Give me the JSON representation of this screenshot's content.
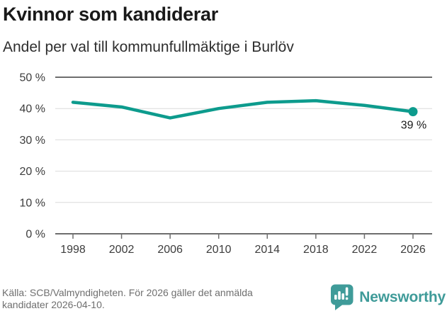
{
  "chart_data": {
    "type": "line",
    "title": "Kvinnor som kandiderar",
    "subtitle": "Andel per val till kommunfullmäktige i Burlöv",
    "x": [
      1998,
      2002,
      2006,
      2010,
      2014,
      2018,
      2022,
      2026
    ],
    "values": [
      42,
      40.5,
      37,
      40,
      42,
      42.5,
      41,
      39
    ],
    "unit": "%",
    "ylim": [
      0,
      50
    ],
    "yticks": [
      0,
      10,
      20,
      30,
      40,
      50
    ],
    "ytick_labels": [
      "0 %",
      "10 %",
      "20 %",
      "30 %",
      "40 %",
      "50 %"
    ],
    "xtick_labels": [
      "1998",
      "2002",
      "2006",
      "2010",
      "2014",
      "2018",
      "2022",
      "2026"
    ],
    "endpoint_label": "39 %",
    "grid": true,
    "legend_position": "none",
    "colors": {
      "line": "#0d9b8d",
      "grid": "#dcdcdc",
      "axis": "#6e6e6e",
      "tick_text": "#3d3d3d",
      "endpoint_text": "#1a1a1a"
    }
  },
  "footer": {
    "source_lines": [
      "Källa: SCB/Valmyndigheten. För 2026 gäller det anmälda",
      "kandidater 2026-04-10."
    ],
    "logo_text": "Newsworthy",
    "logo_color": "#3f9b99"
  }
}
